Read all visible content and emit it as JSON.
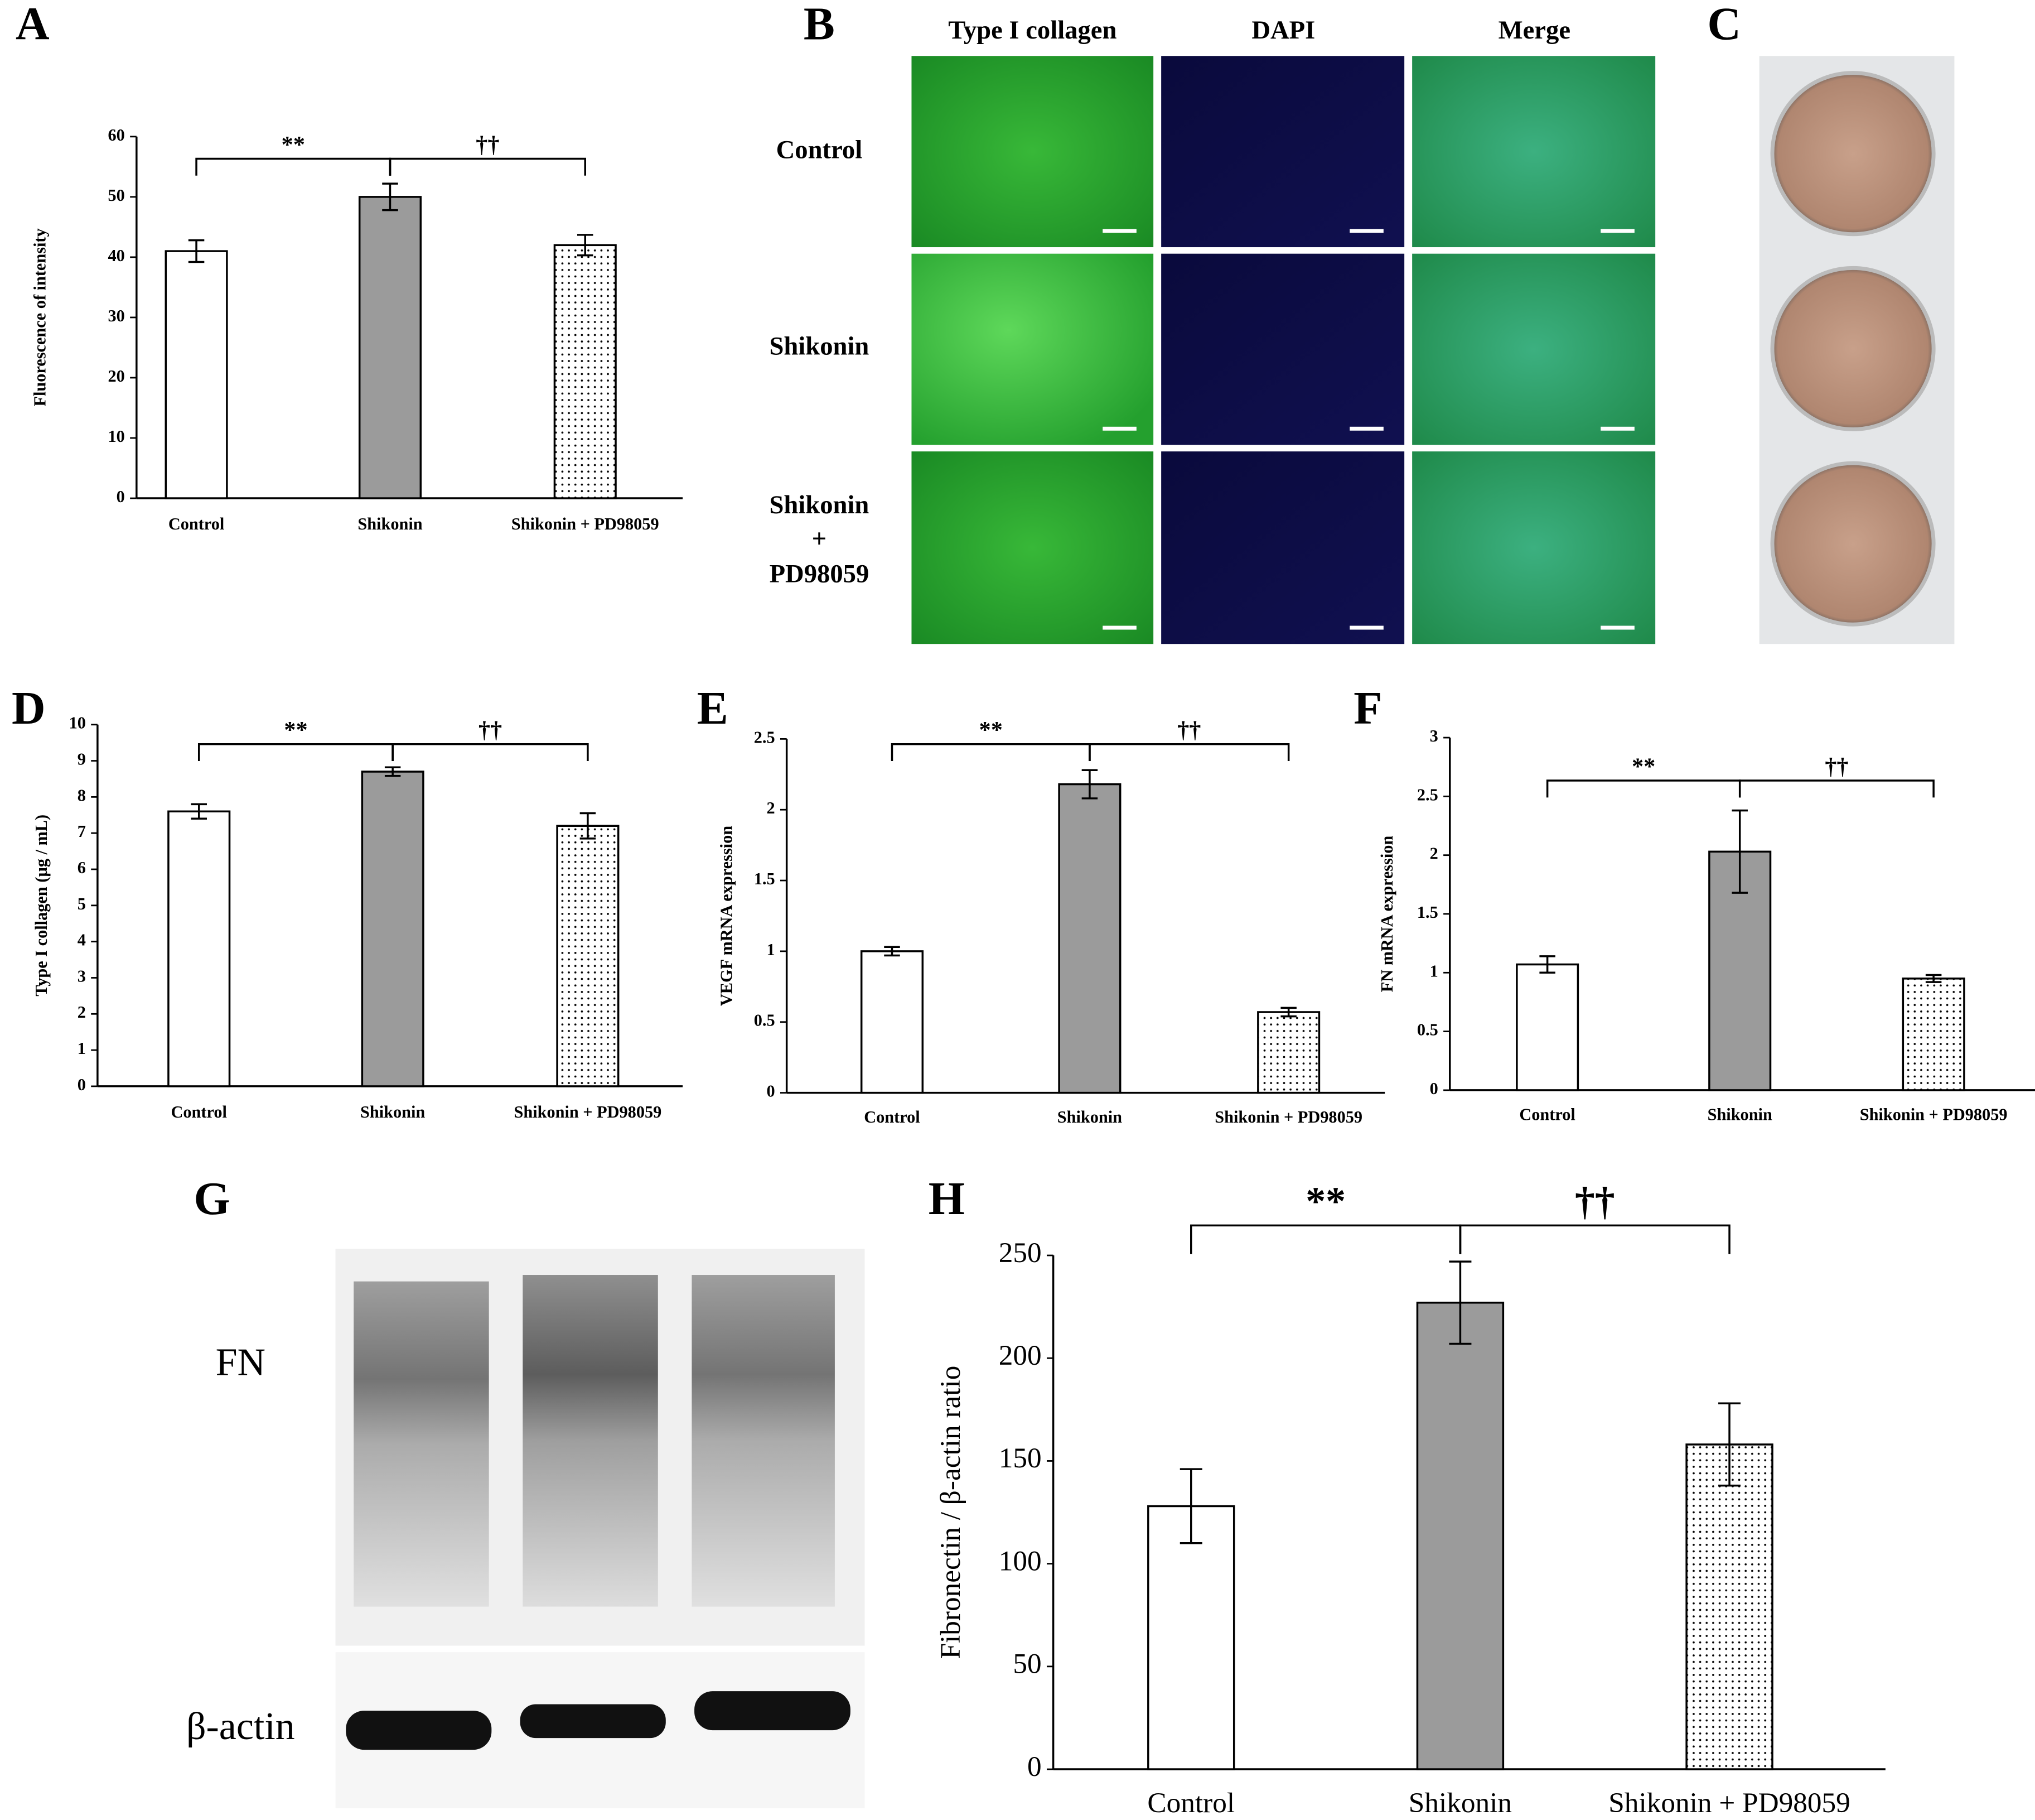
{
  "chart_data": [
    {
      "type": "bar",
      "panel": "A",
      "y_label": "Fluorescence of intensity",
      "categories": [
        "Control",
        "Shikonin",
        "Shikonin + PD98059"
      ],
      "values": [
        41,
        50,
        42
      ],
      "errors": [
        1.8,
        2.2,
        1.7
      ],
      "colors": [
        "#ffffff",
        "#9b9b9b",
        "#ffffff"
      ],
      "dotted": [
        false,
        false,
        true
      ],
      "ylim": [
        0,
        60
      ],
      "yticks": [
        0,
        10,
        20,
        30,
        40,
        50,
        60
      ],
      "annotations": [
        "**",
        "††"
      ]
    },
    {
      "type": "bar",
      "panel": "D",
      "y_label": "Type I collagen (µg / mL)",
      "categories": [
        "Control",
        "Shikonin",
        "Shikonin + PD98059"
      ],
      "values": [
        7.6,
        8.7,
        7.2
      ],
      "errors": [
        0.2,
        0.12,
        0.35
      ],
      "colors": [
        "#ffffff",
        "#9b9b9b",
        "#ffffff"
      ],
      "dotted": [
        false,
        false,
        true
      ],
      "ylim": [
        0,
        10
      ],
      "yticks": [
        0,
        1,
        2,
        3,
        4,
        5,
        6,
        7,
        8,
        9,
        10
      ],
      "annotations": [
        "**",
        "††"
      ]
    },
    {
      "type": "bar",
      "panel": "E",
      "y_label": "VEGF mRNA expression",
      "categories": [
        "Control",
        "Shikonin",
        "Shikonin + PD98059"
      ],
      "values": [
        1.0,
        2.18,
        0.57
      ],
      "errors": [
        0.03,
        0.1,
        0.03
      ],
      "colors": [
        "#ffffff",
        "#9b9b9b",
        "#ffffff"
      ],
      "dotted": [
        false,
        false,
        true
      ],
      "ylim": [
        0,
        2.5
      ],
      "yticks": [
        0,
        0.5,
        1,
        1.5,
        2,
        2.5
      ],
      "annotations": [
        "**",
        "††"
      ]
    },
    {
      "type": "bar",
      "panel": "F",
      "y_label": "FN mRNA expression",
      "categories": [
        "Control",
        "Shikonin",
        "Shikonin + PD98059"
      ],
      "values": [
        1.07,
        2.03,
        0.95
      ],
      "errors": [
        0.07,
        0.35,
        0.03
      ],
      "colors": [
        "#ffffff",
        "#9b9b9b",
        "#ffffff"
      ],
      "dotted": [
        false,
        false,
        true
      ],
      "ylim": [
        0,
        3
      ],
      "yticks": [
        0,
        0.5,
        1,
        1.5,
        2,
        2.5,
        3
      ],
      "annotations": [
        "**",
        "††"
      ]
    },
    {
      "type": "bar",
      "panel": "H",
      "y_label": "Fibronectin / β-actin ratio",
      "categories": [
        "Control",
        "Shikonin",
        "Shikonin + PD98059"
      ],
      "values": [
        128,
        227,
        158
      ],
      "errors": [
        18,
        20,
        20
      ],
      "colors": [
        "#ffffff",
        "#9b9b9b",
        "#ffffff"
      ],
      "dotted": [
        false,
        false,
        true
      ],
      "ylim": [
        0,
        250
      ],
      "yticks": [
        0,
        50,
        100,
        150,
        200,
        250
      ],
      "annotations": [
        "**",
        "††"
      ]
    }
  ],
  "images": {
    "B": {
      "panel": "B",
      "columns": [
        "Type I collagen",
        "DAPI",
        "Merge"
      ],
      "rows": [
        [
          "Control"
        ],
        [
          "Shikonin"
        ],
        [
          "Shikonin",
          "+",
          "PD98059"
        ]
      ]
    },
    "C": {
      "panel": "C"
    },
    "G": {
      "panel": "G",
      "bands": [
        "FN",
        "β-actin"
      ]
    }
  }
}
